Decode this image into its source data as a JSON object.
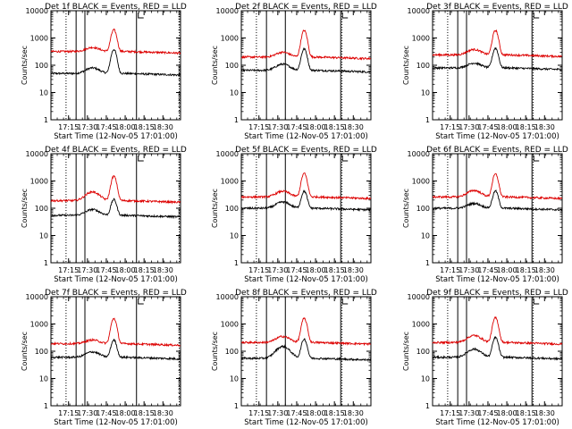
{
  "chart_data": [
    {
      "type": "line",
      "title": "Det 1f BLACK = Events, RED = LLD",
      "xlabel": "Start Time (12-Nov-05 17:01:00)",
      "ylabel": "Counts/sec",
      "x_ticks": [
        "17:15",
        "17:30",
        "17:45",
        "18:00",
        "18:15",
        "18:30"
      ],
      "y_ticks": [
        "1",
        "10",
        "100",
        "1000",
        "10000"
      ],
      "y_scale": "log",
      "ylim": [
        1,
        10000
      ],
      "xlim_minutes_after_start": [
        0,
        103
      ],
      "dotted_markers": [
        12,
        102
      ],
      "solid_markers": [
        20,
        27,
        68
      ],
      "series": [
        {
          "name": "BLACK = Events",
          "color": "#000000",
          "baseline": 50,
          "rise": 80,
          "peak": 380
        },
        {
          "name": "RED = LLD",
          "color": "#dd0000",
          "baseline": 320,
          "rise": 450,
          "peak": 2000
        }
      ]
    },
    {
      "type": "line",
      "title": "Det 2f BLACK = Events, RED = LLD",
      "xlabel": "Start Time (12-Nov-05 17:01:00)",
      "ylabel": "Counts/sec",
      "x_ticks": [
        "17:15",
        "17:30",
        "17:45",
        "18:00",
        "18:15",
        "18:30"
      ],
      "y_ticks": [
        "1",
        "10",
        "100",
        "1000",
        "10000"
      ],
      "y_scale": "log",
      "ylim": [
        1,
        10000
      ],
      "xlim_minutes_after_start": [
        0,
        103
      ],
      "dotted_markers": [
        12,
        80
      ],
      "solid_markers": [
        20,
        35,
        79
      ],
      "series": [
        {
          "name": "BLACK = Events",
          "color": "#000000",
          "baseline": 65,
          "rise": 110,
          "peak": 400
        },
        {
          "name": "RED = LLD",
          "color": "#dd0000",
          "baseline": 200,
          "rise": 300,
          "peak": 1900
        }
      ]
    },
    {
      "type": "line",
      "title": "Det 3f BLACK = Events, RED = LLD",
      "xlabel": "Start Time (12-Nov-05 17:01:00)",
      "ylabel": "Counts/sec",
      "x_ticks": [
        "17:15",
        "17:30",
        "17:45",
        "18:00",
        "18:15",
        "18:30"
      ],
      "y_ticks": [
        "1",
        "10",
        "100",
        "1000",
        "10000"
      ],
      "y_scale": "log",
      "ylim": [
        1,
        10000
      ],
      "xlim_minutes_after_start": [
        0,
        103
      ],
      "dotted_markers": [
        12,
        80
      ],
      "solid_markers": [
        20,
        27,
        79
      ],
      "series": [
        {
          "name": "BLACK = Events",
          "color": "#000000",
          "baseline": 80,
          "rise": 120,
          "peak": 420
        },
        {
          "name": "RED = LLD",
          "color": "#dd0000",
          "baseline": 240,
          "rise": 380,
          "peak": 1900
        }
      ]
    },
    {
      "type": "line",
      "title": "Det 4f BLACK = Events, RED = LLD",
      "xlabel": "Start Time (12-Nov-05 17:01:00)",
      "ylabel": "Counts/sec",
      "x_ticks": [
        "17:15",
        "17:30",
        "17:45",
        "18:00",
        "18:15",
        "18:30"
      ],
      "y_ticks": [
        "1",
        "10",
        "100",
        "1000",
        "10000"
      ],
      "y_scale": "log",
      "ylim": [
        1,
        10000
      ],
      "xlim_minutes_after_start": [
        0,
        103
      ],
      "dotted_markers": [
        12,
        102
      ],
      "solid_markers": [
        20,
        27,
        68
      ],
      "series": [
        {
          "name": "BLACK = Events",
          "color": "#000000",
          "baseline": 55,
          "rise": 90,
          "peak": 210
        },
        {
          "name": "RED = LLD",
          "color": "#dd0000",
          "baseline": 190,
          "rise": 400,
          "peak": 1500
        }
      ]
    },
    {
      "type": "line",
      "title": "Det 5f BLACK = Events, RED = LLD",
      "xlabel": "Start Time (12-Nov-05 17:01:00)",
      "ylabel": "Counts/sec",
      "x_ticks": [
        "17:15",
        "17:30",
        "17:45",
        "18:00",
        "18:15",
        "18:30"
      ],
      "y_ticks": [
        "1",
        "10",
        "100",
        "1000",
        "10000"
      ],
      "y_scale": "log",
      "ylim": [
        1,
        10000
      ],
      "xlim_minutes_after_start": [
        0,
        103
      ],
      "dotted_markers": [
        12,
        80
      ],
      "solid_markers": [
        20,
        35,
        79
      ],
      "series": [
        {
          "name": "BLACK = Events",
          "color": "#000000",
          "baseline": 100,
          "rise": 170,
          "peak": 420
        },
        {
          "name": "RED = LLD",
          "color": "#dd0000",
          "baseline": 260,
          "rise": 420,
          "peak": 1900
        }
      ]
    },
    {
      "type": "line",
      "title": "Det 6f BLACK = Events, RED = LLD",
      "xlabel": "Start Time (12-Nov-05 17:01:00)",
      "ylabel": "Counts/sec",
      "x_ticks": [
        "17:15",
        "17:30",
        "17:45",
        "18:00",
        "18:15",
        "18:30"
      ],
      "y_ticks": [
        "1",
        "10",
        "100",
        "1000",
        "10000"
      ],
      "y_scale": "log",
      "ylim": [
        1,
        10000
      ],
      "xlim_minutes_after_start": [
        0,
        103
      ],
      "dotted_markers": [
        12,
        80
      ],
      "solid_markers": [
        20,
        27,
        79
      ],
      "series": [
        {
          "name": "BLACK = Events",
          "color": "#000000",
          "baseline": 100,
          "rise": 150,
          "peak": 430
        },
        {
          "name": "RED = LLD",
          "color": "#dd0000",
          "baseline": 260,
          "rise": 450,
          "peak": 1800
        }
      ]
    },
    {
      "type": "line",
      "title": "Det 7f BLACK = Events, RED = LLD",
      "xlabel": "Start Time (12-Nov-05 17:01:00)",
      "ylabel": "Counts/sec",
      "x_ticks": [
        "17:15",
        "17:30",
        "17:45",
        "18:00",
        "18:15",
        "18:30"
      ],
      "y_ticks": [
        "1",
        "10",
        "100",
        "1000",
        "10000"
      ],
      "y_scale": "log",
      "ylim": [
        1,
        10000
      ],
      "xlim_minutes_after_start": [
        0,
        103
      ],
      "dotted_markers": [
        12,
        102
      ],
      "solid_markers": [
        20,
        27,
        68
      ],
      "series": [
        {
          "name": "BLACK = Events",
          "color": "#000000",
          "baseline": 60,
          "rise": 95,
          "peak": 260
        },
        {
          "name": "RED = LLD",
          "color": "#dd0000",
          "baseline": 190,
          "rise": 260,
          "peak": 1600
        }
      ]
    },
    {
      "type": "line",
      "title": "Det 8f BLACK = Events, RED = LLD",
      "xlabel": "Start Time (12-Nov-05 17:01:00)",
      "ylabel": "Counts/sec",
      "x_ticks": [
        "17:15",
        "17:30",
        "17:45",
        "18:00",
        "18:15",
        "18:30"
      ],
      "y_ticks": [
        "1",
        "10",
        "100",
        "1000",
        "10000"
      ],
      "y_scale": "log",
      "ylim": [
        1,
        10000
      ],
      "xlim_minutes_after_start": [
        0,
        103
      ],
      "dotted_markers": [
        12,
        80
      ],
      "solid_markers": [
        20,
        35,
        79
      ],
      "series": [
        {
          "name": "BLACK = Events",
          "color": "#000000",
          "baseline": 55,
          "rise": 150,
          "peak": 280
        },
        {
          "name": "RED = LLD",
          "color": "#dd0000",
          "baseline": 210,
          "rise": 350,
          "peak": 1600
        }
      ]
    },
    {
      "type": "line",
      "title": "Det 9f BLACK = Events, RED = LLD",
      "xlabel": "Start Time (12-Nov-05 17:01:00)",
      "ylabel": "Counts/sec",
      "x_ticks": [
        "17:15",
        "17:30",
        "17:45",
        "18:00",
        "18:15",
        "18:30"
      ],
      "y_ticks": [
        "1",
        "10",
        "100",
        "1000",
        "10000"
      ],
      "y_scale": "log",
      "ylim": [
        1,
        10000
      ],
      "xlim_minutes_after_start": [
        0,
        103
      ],
      "dotted_markers": [
        12,
        80
      ],
      "solid_markers": [
        20,
        27,
        79
      ],
      "series": [
        {
          "name": "BLACK = Events",
          "color": "#000000",
          "baseline": 60,
          "rise": 120,
          "peak": 320
        },
        {
          "name": "RED = LLD",
          "color": "#dd0000",
          "baseline": 210,
          "rise": 380,
          "peak": 1700
        }
      ]
    }
  ]
}
